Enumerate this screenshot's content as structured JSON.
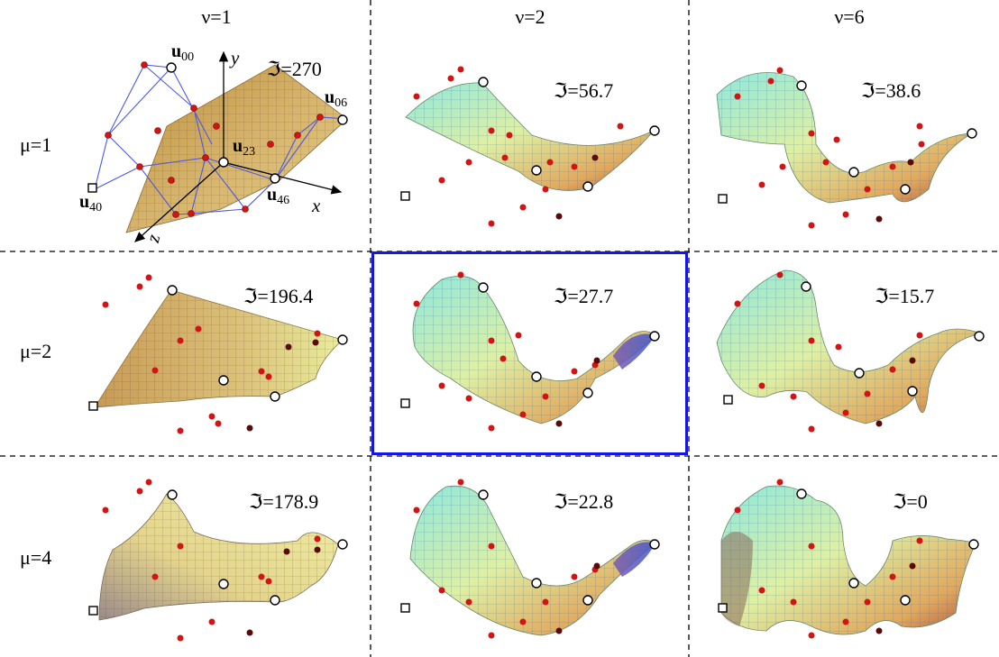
{
  "columns": [
    {
      "label": "ν=1"
    },
    {
      "label": "ν=2"
    },
    {
      "label": "ν=6"
    }
  ],
  "rows": [
    {
      "label": "μ=1",
      "values": [
        "ℑ=270",
        "ℑ=56.7",
        "ℑ=38.6"
      ]
    },
    {
      "label": "μ=2",
      "values": [
        "ℑ=196.4",
        "ℑ=27.7",
        "ℑ=15.7"
      ]
    },
    {
      "label": "μ=4",
      "values": [
        "ℑ=178.9",
        "ℑ=22.8",
        "ℑ=0"
      ]
    }
  ],
  "highlighted_cell": {
    "row": 1,
    "col": 1
  },
  "axes": {
    "x": "x",
    "y": "y",
    "z": "z"
  },
  "control_points": [
    {
      "symbol": "u",
      "index": "00"
    },
    {
      "symbol": "u",
      "index": "06"
    },
    {
      "symbol": "u",
      "index": "23"
    },
    {
      "symbol": "u",
      "index": "40"
    },
    {
      "symbol": "u",
      "index": "46"
    }
  ],
  "colors": {
    "highlight_border": "#1515e6",
    "wire_net": "#4a5ae0",
    "red_points": "#d11414",
    "dark_points": "#5a0a0a",
    "surface_tan": "#c7a45c",
    "surface_cyan": "#8fe6d8",
    "surface_yellow": "#e8ef9a",
    "surface_blue": "#3a5ad0"
  }
}
